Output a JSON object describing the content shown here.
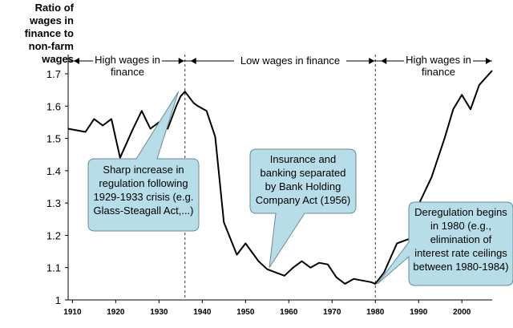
{
  "chart_data": {
    "type": "line",
    "ylabel": "Ratio of wages in finance to non-farm wages",
    "xlim": [
      1909,
      2007
    ],
    "ylim": [
      1.0,
      1.7
    ],
    "y_ticks": [
      "1",
      "1.1",
      "1.2",
      "1.3",
      "1.4",
      "1.5",
      "1.6",
      "1.7"
    ],
    "x_ticks": [
      "1910",
      "1920",
      "1930",
      "1940",
      "1950",
      "1960",
      "1970",
      "1980",
      "1990",
      "2000"
    ],
    "grid": false,
    "series": [
      {
        "color": "#000000",
        "x": [
          1909,
          1911,
          1913,
          1915,
          1917,
          1919,
          1921,
          1924,
          1926,
          1928,
          1930,
          1932,
          1934,
          1935,
          1936,
          1938,
          1939,
          1941,
          1943,
          1945,
          1948,
          1950,
          1953,
          1955,
          1957,
          1959,
          1961,
          1963,
          1965,
          1967,
          1969,
          1971,
          1973,
          1975,
          1977,
          1979,
          1980,
          1982,
          1985,
          1988,
          1990,
          1993,
          1996,
          1998,
          2000,
          2002,
          2004,
          2007
        ],
        "y": [
          1.53,
          1.525,
          1.52,
          1.56,
          1.54,
          1.56,
          1.44,
          1.53,
          1.585,
          1.53,
          1.55,
          1.53,
          1.6,
          1.63,
          1.645,
          1.61,
          1.6,
          1.585,
          1.505,
          1.24,
          1.14,
          1.175,
          1.12,
          1.095,
          1.085,
          1.075,
          1.1,
          1.12,
          1.1,
          1.115,
          1.11,
          1.07,
          1.05,
          1.065,
          1.06,
          1.055,
          1.05,
          1.085,
          1.175,
          1.19,
          1.295,
          1.38,
          1.5,
          1.59,
          1.635,
          1.59,
          1.665,
          1.71
        ]
      }
    ],
    "eras": [
      {
        "label": "High wages in finance",
        "from": 1909,
        "to": 1936
      },
      {
        "label": "Low wages in finance",
        "from": 1936,
        "to": 1980
      },
      {
        "label": "High wages in finance",
        "from": 1980,
        "to": 2007
      }
    ],
    "era_boundaries": [
      1936,
      1980
    ],
    "annotations": [
      {
        "text": "Sharp increase in regulation following 1929-1933 crisis (e.g. Glass-Steagall Act,...)",
        "pointer_x": 1934.5,
        "pointer_y": 1.645
      },
      {
        "text": "Insurance and banking separated by Bank Holding Company Act (1956)",
        "pointer_x": 1955.5,
        "pointer_y": 1.1
      },
      {
        "text": "Deregulation begins in 1980 (e.g., elimination of interest rate ceilings between 1980-1984)",
        "pointer_x": 1980.5,
        "pointer_y": 1.05
      }
    ],
    "callout_fill": "#b7dde8"
  }
}
